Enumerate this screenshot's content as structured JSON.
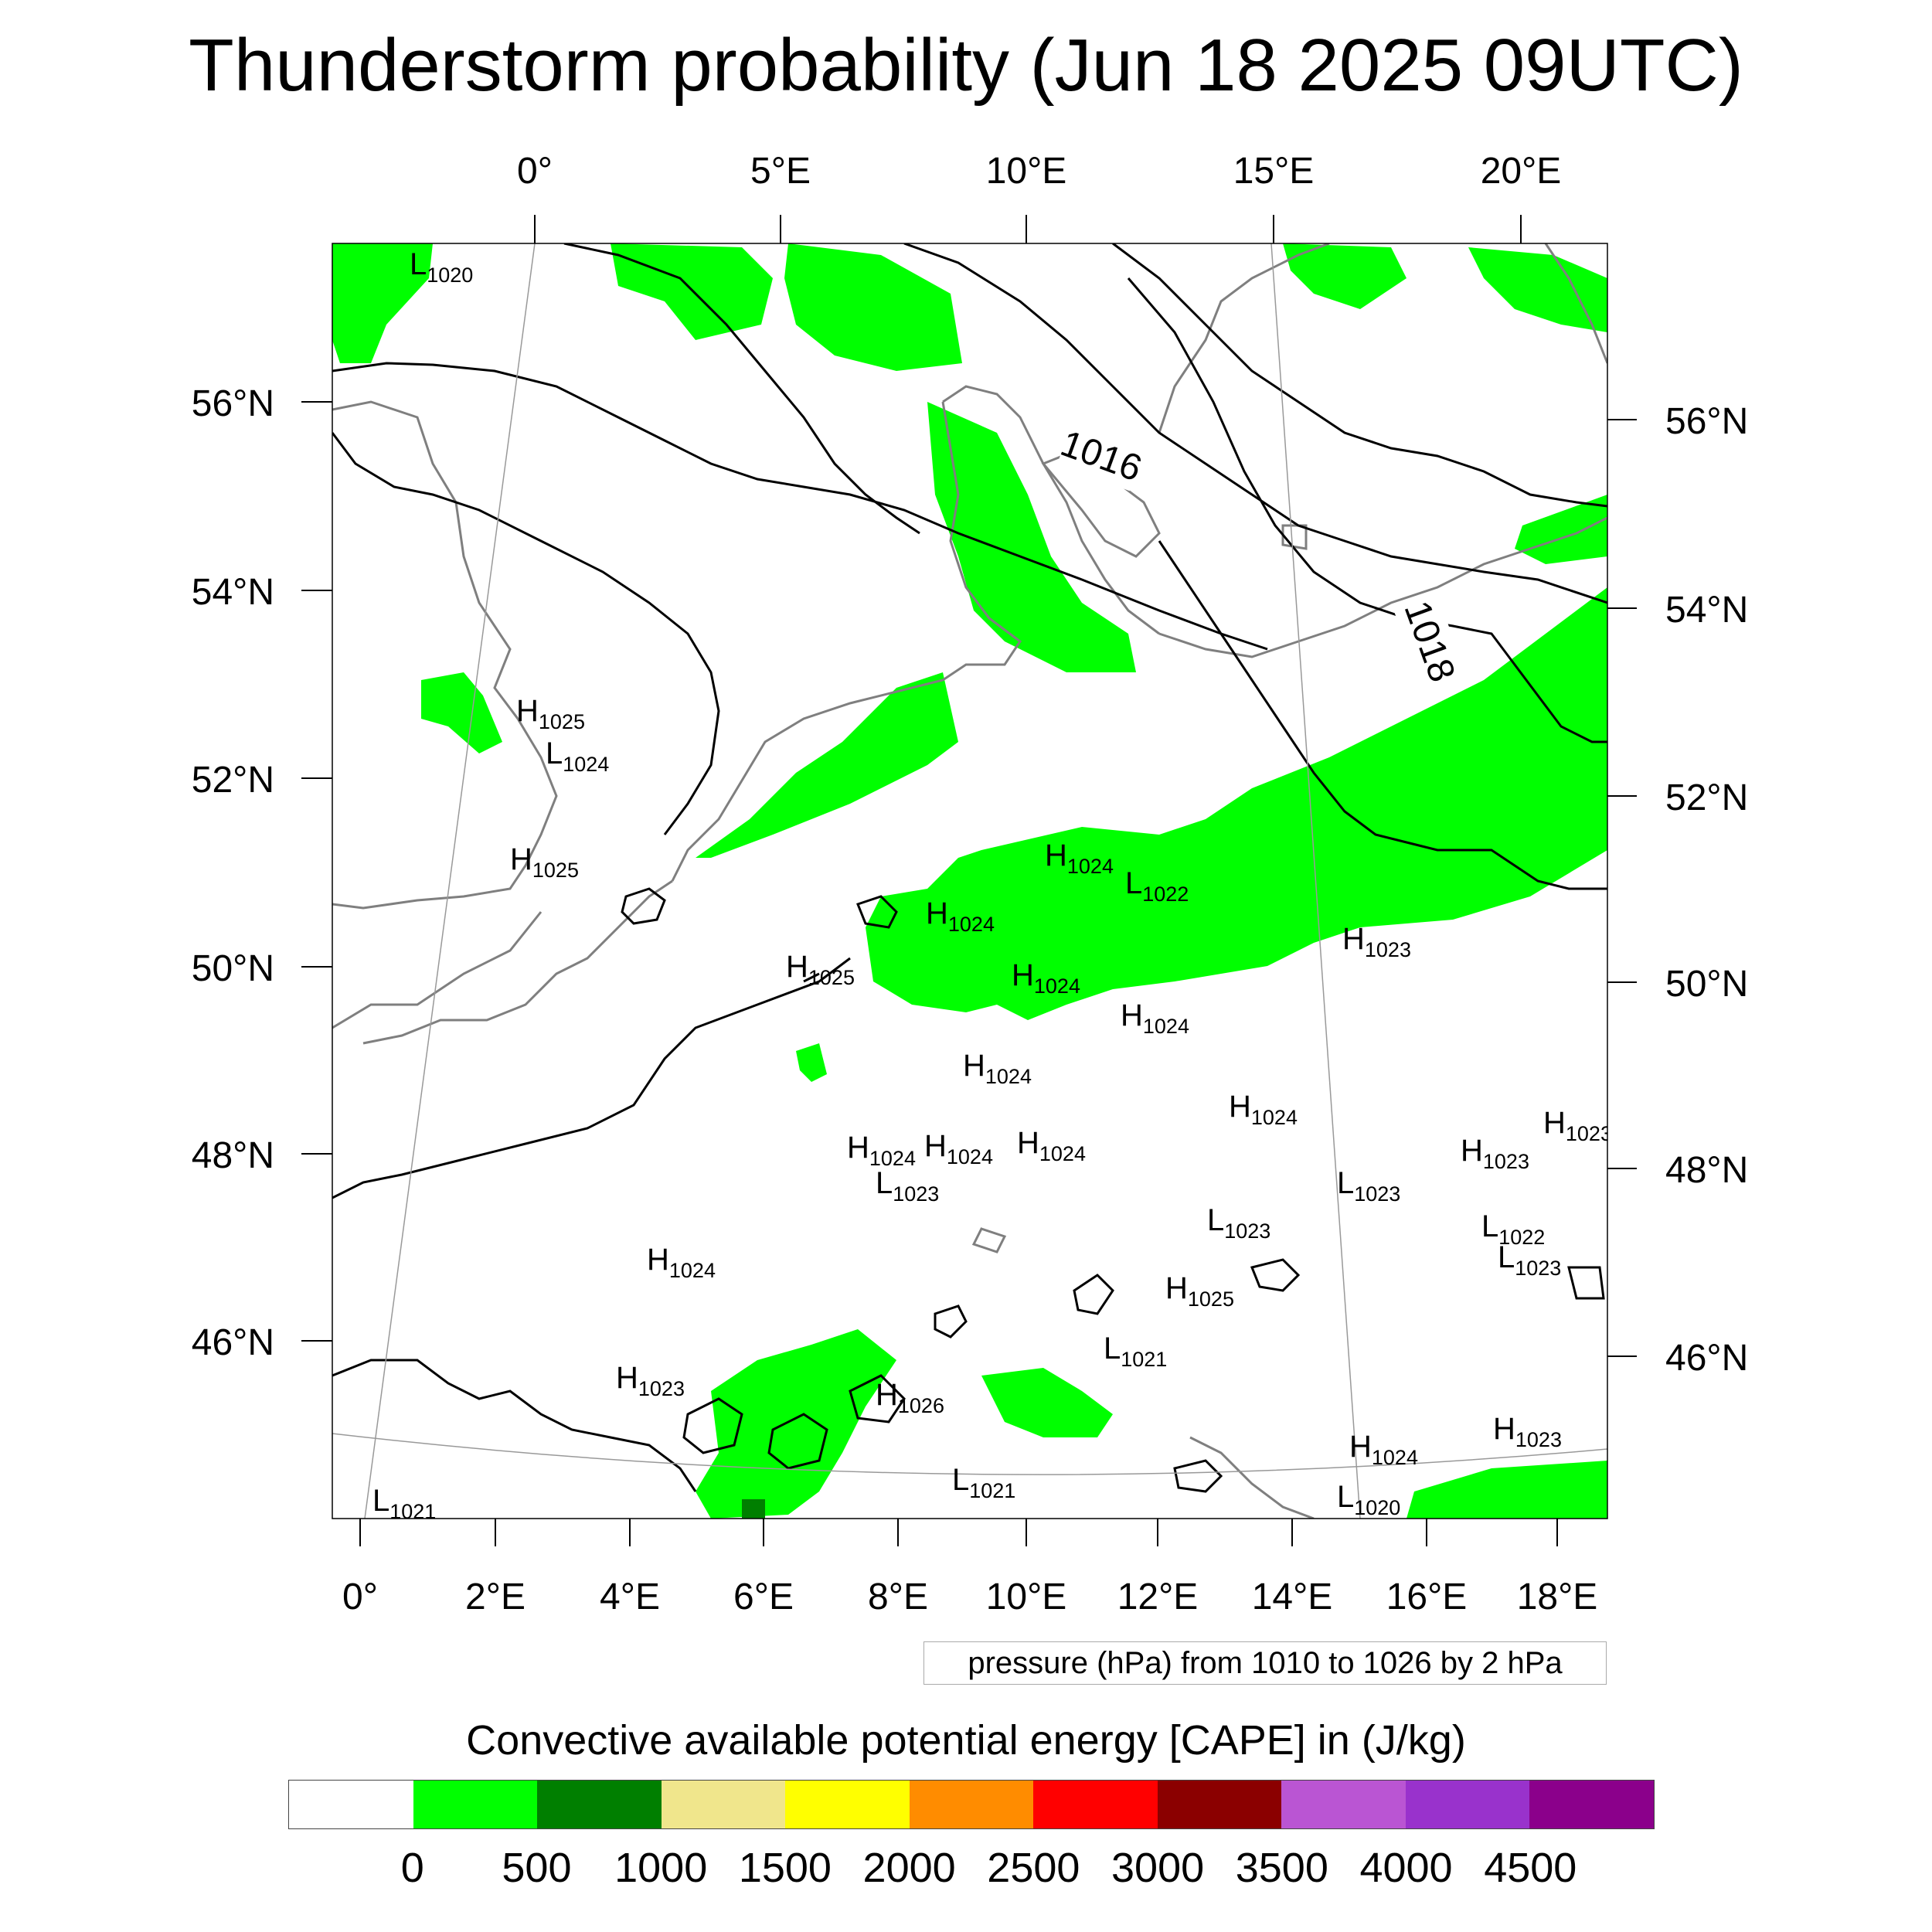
{
  "title": "Thunderstorm probability (Jun 18 2025 09UTC)",
  "axes": {
    "top_lon_labels": [
      "0°",
      "5°E",
      "10°E",
      "15°E",
      "20°E"
    ],
    "bottom_lon_labels": [
      "0°",
      "2°E",
      "4°E",
      "6°E",
      "8°E",
      "10°E",
      "12°E",
      "14°E",
      "16°E",
      "18°E"
    ],
    "left_lat_labels": [
      "56°N",
      "54°N",
      "52°N",
      "50°N",
      "48°N",
      "46°N"
    ],
    "right_lat_labels": [
      "56°N",
      "54°N",
      "52°N",
      "50°N",
      "48°N",
      "46°N"
    ]
  },
  "isobar_labels": [
    "1016",
    "1018"
  ],
  "pressure_centers": [
    {
      "type": "L",
      "value": "1020"
    },
    {
      "type": "H",
      "value": "1025"
    },
    {
      "type": "L",
      "value": "1024"
    },
    {
      "type": "H",
      "value": "1025"
    },
    {
      "type": "H",
      "value": "1024"
    },
    {
      "type": "L",
      "value": "1022"
    },
    {
      "type": "H",
      "value": "1024"
    },
    {
      "type": "H",
      "value": "1025"
    },
    {
      "type": "H",
      "value": "1024"
    },
    {
      "type": "H",
      "value": "1024"
    },
    {
      "type": "H",
      "value": "1023"
    },
    {
      "type": "H",
      "value": "1024"
    },
    {
      "type": "H",
      "value": "1024"
    },
    {
      "type": "H",
      "value": "1024"
    },
    {
      "type": "H",
      "value": "1024"
    },
    {
      "type": "H",
      "value": "1024"
    },
    {
      "type": "L",
      "value": "1023"
    },
    {
      "type": "L",
      "value": "1023"
    },
    {
      "type": "H",
      "value": "1023"
    },
    {
      "type": "H",
      "value": "1023"
    },
    {
      "type": "L",
      "value": "1023"
    },
    {
      "type": "L",
      "value": "1022"
    },
    {
      "type": "H",
      "value": "1024"
    },
    {
      "type": "H",
      "value": "1025"
    },
    {
      "type": "L",
      "value": "1021"
    },
    {
      "type": "H",
      "value": "1023"
    },
    {
      "type": "H",
      "value": "1026"
    },
    {
      "type": "H",
      "value": "1024"
    },
    {
      "type": "H",
      "value": "1023"
    },
    {
      "type": "L",
      "value": "1021"
    },
    {
      "type": "L",
      "value": "1021"
    },
    {
      "type": "L",
      "value": "1020"
    },
    {
      "type": "L",
      "value": "1023"
    }
  ],
  "pressure_note": "pressure (hPa) from 1010 to 1026 by 2 hPa",
  "colorbar": {
    "title": "Convective available potential energy [CAPE] in (J/kg)",
    "colors": [
      "#ffffff",
      "#00ff00",
      "#007f00",
      "#f0e68c",
      "#ffff00",
      "#ff8c00",
      "#ff0000",
      "#8b0000",
      "#ba55d3",
      "#9932cc",
      "#8b008b"
    ],
    "labels": [
      "0",
      "500",
      "1000",
      "1500",
      "2000",
      "2500",
      "3000",
      "3500",
      "4000",
      "4500"
    ]
  }
}
